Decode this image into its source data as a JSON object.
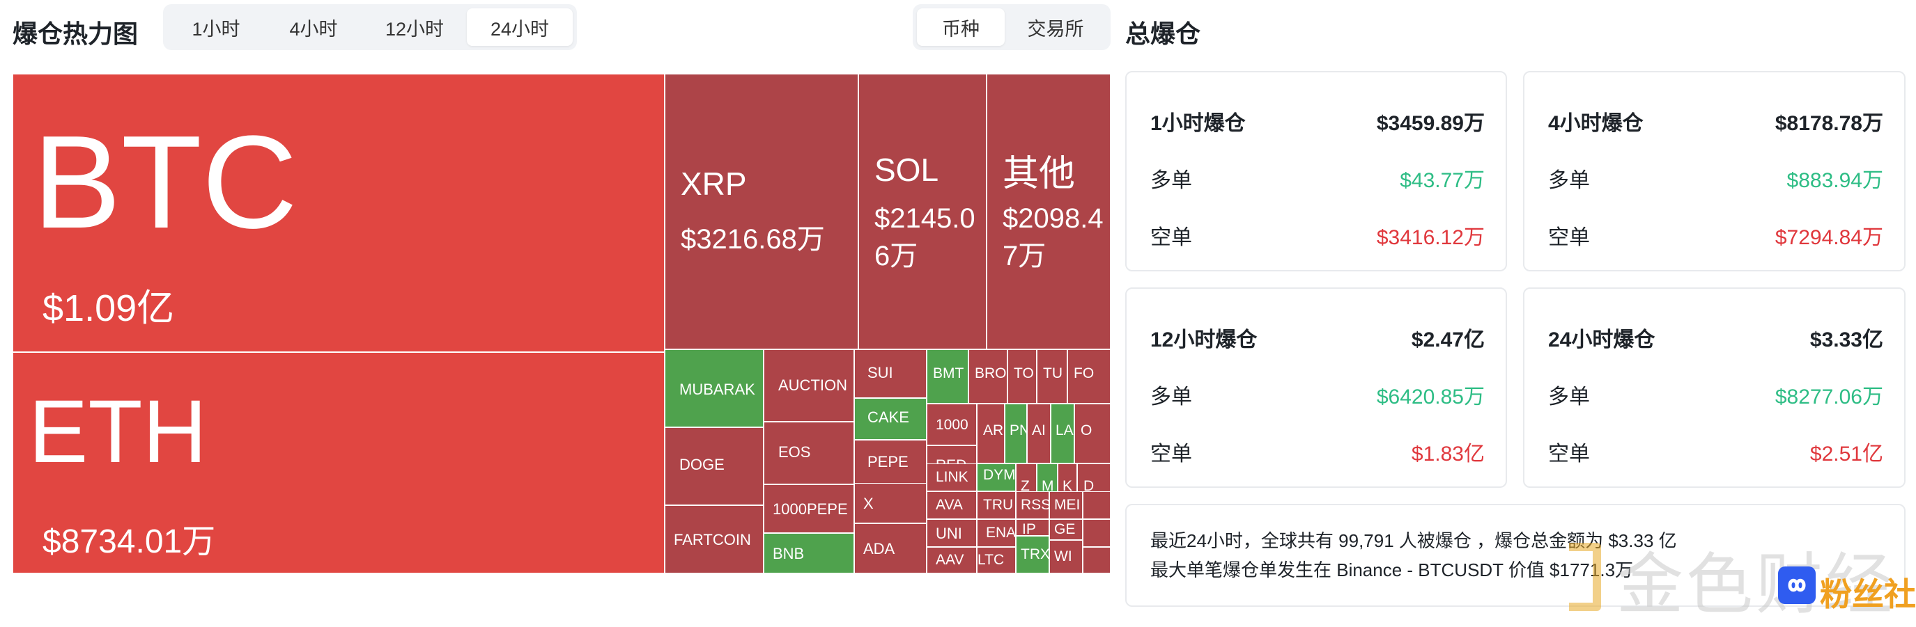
{
  "header": {
    "heatmap_title": "爆仓热力图",
    "time_tabs": [
      {
        "label": "1小时",
        "active": false
      },
      {
        "label": "4小时",
        "active": false
      },
      {
        "label": "12小时",
        "active": false
      },
      {
        "label": "24小时",
        "active": true
      }
    ],
    "group_tabs": [
      {
        "label": "币种",
        "active": true
      },
      {
        "label": "交易所",
        "active": false
      }
    ],
    "total_title": "总爆仓"
  },
  "treemap": {
    "colors": {
      "red": "#e14641",
      "dark_red": "#ad4448",
      "green": "#4fa24d"
    },
    "tiles": [
      {
        "symbol": "BTC",
        "value": "$1.09亿",
        "color": "red"
      },
      {
        "symbol": "ETH",
        "value": "$8734.01万",
        "color": "red"
      },
      {
        "symbol": "XRP",
        "value": "$3216.68万",
        "color": "dark_red"
      },
      {
        "symbol": "SOL",
        "value": "$2145.06万",
        "color": "dark_red"
      },
      {
        "symbol": "其他",
        "value": "$2098.47万",
        "color": "dark_red"
      },
      {
        "symbol": "MUBARAK",
        "color": "green"
      },
      {
        "symbol": "AUCTION",
        "color": "dark_red"
      },
      {
        "symbol": "SUI",
        "color": "dark_red"
      },
      {
        "symbol": "BMT",
        "color": "green"
      },
      {
        "symbol": "BRO",
        "color": "dark_red"
      },
      {
        "symbol": "TO",
        "color": "dark_red"
      },
      {
        "symbol": "TU",
        "color": "dark_red"
      },
      {
        "symbol": "FO",
        "color": "dark_red"
      },
      {
        "symbol": "CAKE",
        "color": "green"
      },
      {
        "symbol": "1000",
        "color": "dark_red"
      },
      {
        "symbol": "AR",
        "color": "dark_red"
      },
      {
        "symbol": "PN",
        "color": "green"
      },
      {
        "symbol": "AI",
        "color": "dark_red"
      },
      {
        "symbol": "LA",
        "color": "green"
      },
      {
        "symbol": "O",
        "color": "dark_red"
      },
      {
        "symbol": "DOGE",
        "color": "dark_red"
      },
      {
        "symbol": "EOS",
        "color": "dark_red"
      },
      {
        "symbol": "PEPE",
        "color": "dark_red"
      },
      {
        "symbol": "RED",
        "color": "dark_red"
      },
      {
        "symbol": "DYM",
        "color": "green"
      },
      {
        "symbol": "Z",
        "color": "dark_red"
      },
      {
        "symbol": "M",
        "color": "green"
      },
      {
        "symbol": "K",
        "color": "dark_red"
      },
      {
        "symbol": "D",
        "color": "dark_red"
      },
      {
        "symbol": "1000PEPE",
        "color": "dark_red"
      },
      {
        "symbol": "X",
        "color": "dark_red"
      },
      {
        "symbol": "LINK",
        "color": "dark_red"
      },
      {
        "symbol": "TRU",
        "color": "dark_red"
      },
      {
        "symbol": "RSS",
        "color": "dark_red"
      },
      {
        "symbol": "MEI",
        "color": "dark_red"
      },
      {
        "symbol": "AVA",
        "color": "dark_red"
      },
      {
        "symbol": "FARTCOIN",
        "color": "dark_red"
      },
      {
        "symbol": "BNB",
        "color": "green"
      },
      {
        "symbol": "UNI",
        "color": "dark_red"
      },
      {
        "symbol": "ENA",
        "color": "dark_red"
      },
      {
        "symbol": "IP",
        "color": "dark_red"
      },
      {
        "symbol": "GE",
        "color": "dark_red"
      },
      {
        "symbol": "ADA",
        "color": "dark_red"
      },
      {
        "symbol": "AAV",
        "color": "dark_red"
      },
      {
        "symbol": "LTC",
        "color": "dark_red"
      },
      {
        "symbol": "TRX",
        "color": "green"
      },
      {
        "symbol": "WI",
        "color": "dark_red"
      },
      {
        "symbol": "",
        "color": "dark_red"
      },
      {
        "symbol": "",
        "color": "dark_red"
      },
      {
        "symbol": "",
        "color": "dark_red"
      }
    ]
  },
  "stats": {
    "colors": {
      "long": "#2ebd85",
      "short": "#e0383d"
    },
    "long_label": "多单",
    "short_label": "空单",
    "cards": [
      {
        "title": "1小时爆仓",
        "total": "$3459.89万",
        "long": "$43.77万",
        "short": "$3416.12万"
      },
      {
        "title": "4小时爆仓",
        "total": "$8178.78万",
        "long": "$883.94万",
        "short": "$7294.84万"
      },
      {
        "title": "12小时爆仓",
        "total": "$2.47亿",
        "long": "$6420.85万",
        "short": "$1.83亿"
      },
      {
        "title": "24小时爆仓",
        "total": "$3.33亿",
        "long": "$8277.06万",
        "short": "$2.51亿"
      }
    ]
  },
  "summary": {
    "line1": "最近24小时，全球共有 99,791 人被爆仓 ，爆仓总金额为 $3.33 亿",
    "line2": "最大单笔爆仓单发生在 Binance - BTCUSDT 价值 $1771.3万"
  },
  "watermark": {
    "text_main": "金色财经",
    "text_badge": "粉丝社区"
  }
}
